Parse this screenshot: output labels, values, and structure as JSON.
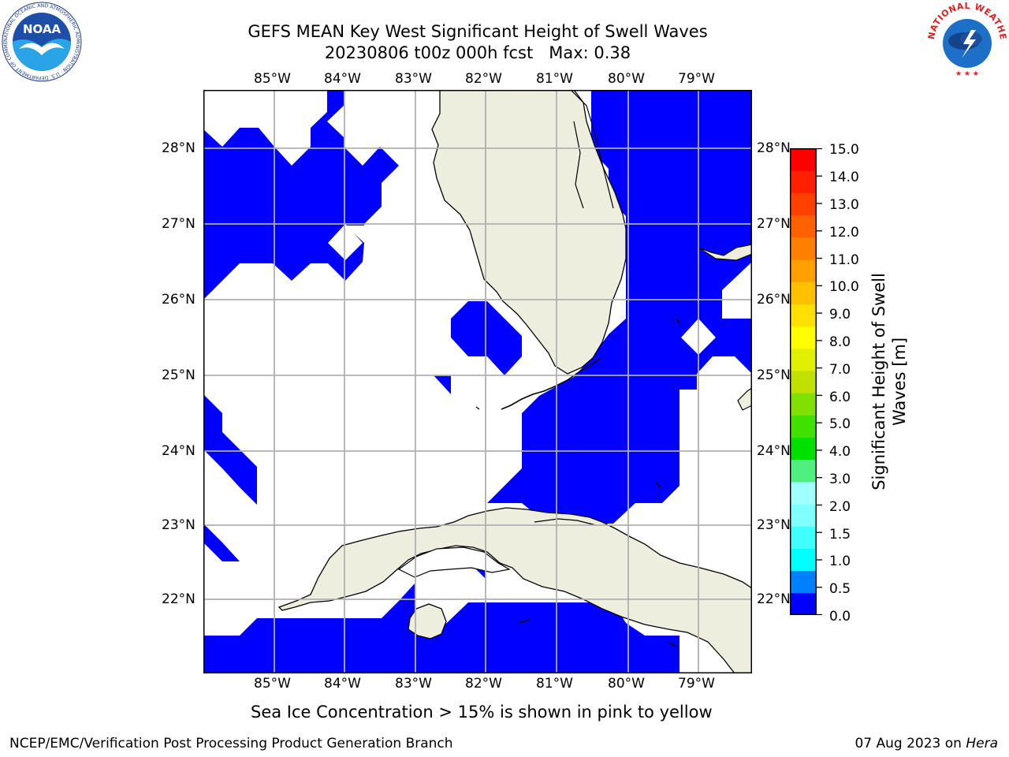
{
  "title_line1": "GEFS MEAN Key West Significant Height of Swell Waves",
  "title_line2": "20230806 t00z 000h fcst   Max: 0.38",
  "map": {
    "lon_ticks": [
      "85°W",
      "84°W",
      "83°W",
      "82°W",
      "81°W",
      "80°W",
      "79°W"
    ],
    "lat_ticks": [
      "28°N",
      "27°N",
      "26°N",
      "25°N",
      "24°N",
      "23°N",
      "22°N"
    ],
    "swell_color": "#0000ff",
    "land_color": "#eeeedf",
    "grid_color": "#b0b0b0"
  },
  "colorbar": {
    "label": "Significant Height of Swell Waves [m]",
    "label_line1": "Significant Height of Swell",
    "label_line2": "Waves [m]",
    "ticks": [
      "15.0",
      "14.0",
      "13.0",
      "12.0",
      "11.0",
      "10.0",
      "9.0",
      "8.0",
      "7.0",
      "6.0",
      "5.0",
      "4.0",
      "3.0",
      "2.0",
      "1.5",
      "1.0",
      "0.5",
      "0.0"
    ],
    "colors": [
      "#0000ff",
      "#0080ff",
      "#00ffff",
      "#40ffff",
      "#80ffff",
      "#a0ffff",
      "#50f080",
      "#00e000",
      "#40e000",
      "#80e000",
      "#c0e000",
      "#e0f000",
      "#ffff00",
      "#ffe000",
      "#ffc000",
      "#ffa000",
      "#ff8000",
      "#ff6000",
      "#ff4000",
      "#ff2000",
      "#ff0000"
    ]
  },
  "note": "Sea Ice Concentration > 15% is shown in pink to yellow",
  "footer_left": "NCEP/EMC/Verification Post Processing Product Generation Branch",
  "footer_date": "07 Aug 2023 on ",
  "footer_host": "Hera",
  "logos": {
    "noaa_text": "NOAA",
    "noaa_ring": "NATIONAL OCEANIC AND ATMOSPHERIC ADMINISTRATION · U.S. DEPARTMENT OF COMMERCE",
    "nws_ring": "NATIONAL WEATHER SERVICE"
  }
}
